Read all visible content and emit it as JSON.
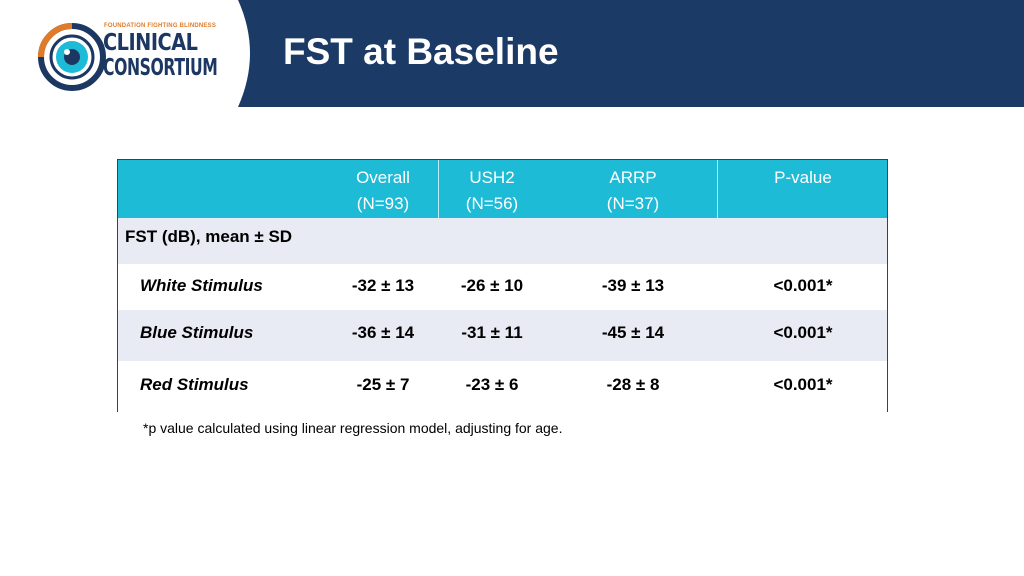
{
  "header": {
    "title": "FST at Baseline",
    "logo": {
      "tagline": "FOUNDATION FIGHTING BLINDNESS",
      "line1": "CLINICAL",
      "line2": "CONSORTIUM"
    }
  },
  "table": {
    "columns": [
      {
        "line1": "Overall",
        "line2": "(N=93)"
      },
      {
        "line1": "USH2",
        "line2": "(N=56)"
      },
      {
        "line1": "ARRP",
        "line2": "(N=37)"
      },
      {
        "line1": "P-value",
        "line2": ""
      }
    ],
    "group_label": "FST (dB), mean ± SD",
    "rows": [
      {
        "label": "White Stimulus",
        "overall": "-32 ± 13",
        "ush2": "-26 ± 10",
        "arrp": "-39 ± 13",
        "pvalue": "<0.001*"
      },
      {
        "label": "Blue Stimulus",
        "overall": "-36 ± 14",
        "ush2": "-31 ± 11",
        "arrp": "-45 ± 14",
        "pvalue": "<0.001*"
      },
      {
        "label": "Red Stimulus",
        "overall": "-25 ± 7",
        "ush2": "-23 ± 6",
        "arrp": "-28 ± 8",
        "pvalue": "<0.001*"
      }
    ]
  },
  "footnote": "*p value calculated using linear regression model, adjusting for age.",
  "colors": {
    "header_bg": "#1b3a66",
    "table_header_bg": "#1ebbd7",
    "band_bg": "#e9ebf4",
    "logo_orange": "#e07b28",
    "logo_navy": "#1c3862"
  }
}
